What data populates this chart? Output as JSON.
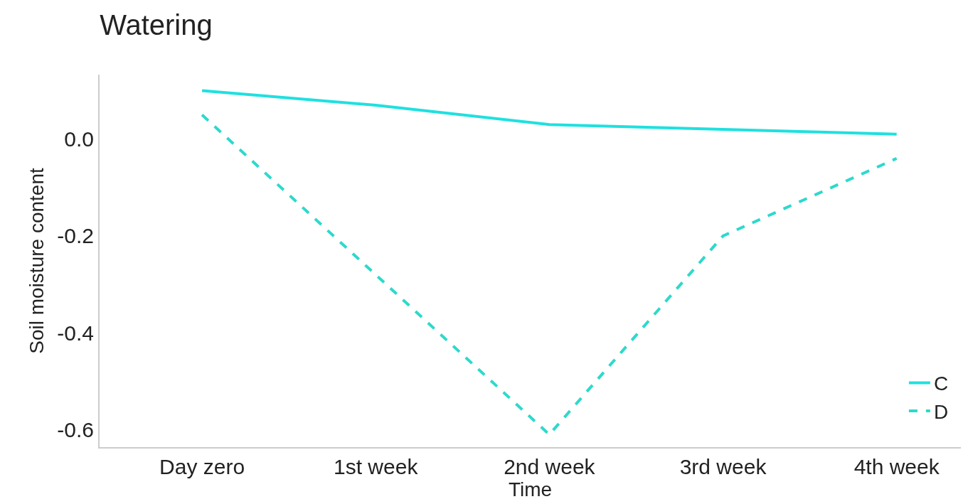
{
  "chart_data": {
    "type": "line",
    "title": "Watering",
    "xlabel": "Time",
    "ylabel": "Soil moisture content",
    "categories": [
      "Day zero",
      "1st week",
      "2nd week",
      "3rd week",
      "4th week"
    ],
    "series": [
      {
        "name": "C",
        "color": "#1fe0e0",
        "line_style": "solid",
        "values": [
          0.1,
          0.07,
          0.03,
          0.02,
          0.01
        ]
      },
      {
        "name": "D",
        "color": "#2dd9cc",
        "line_style": "dashed",
        "values": [
          0.05,
          -0.28,
          -0.61,
          -0.2,
          -0.04
        ]
      }
    ],
    "ylim": [
      -0.636,
      0.133
    ],
    "yticks": [
      {
        "value": 0,
        "label": "0.0"
      },
      -0.2,
      -0.4,
      -0.6
    ],
    "grid": false,
    "legend": "bottom right",
    "marker": "none"
  }
}
